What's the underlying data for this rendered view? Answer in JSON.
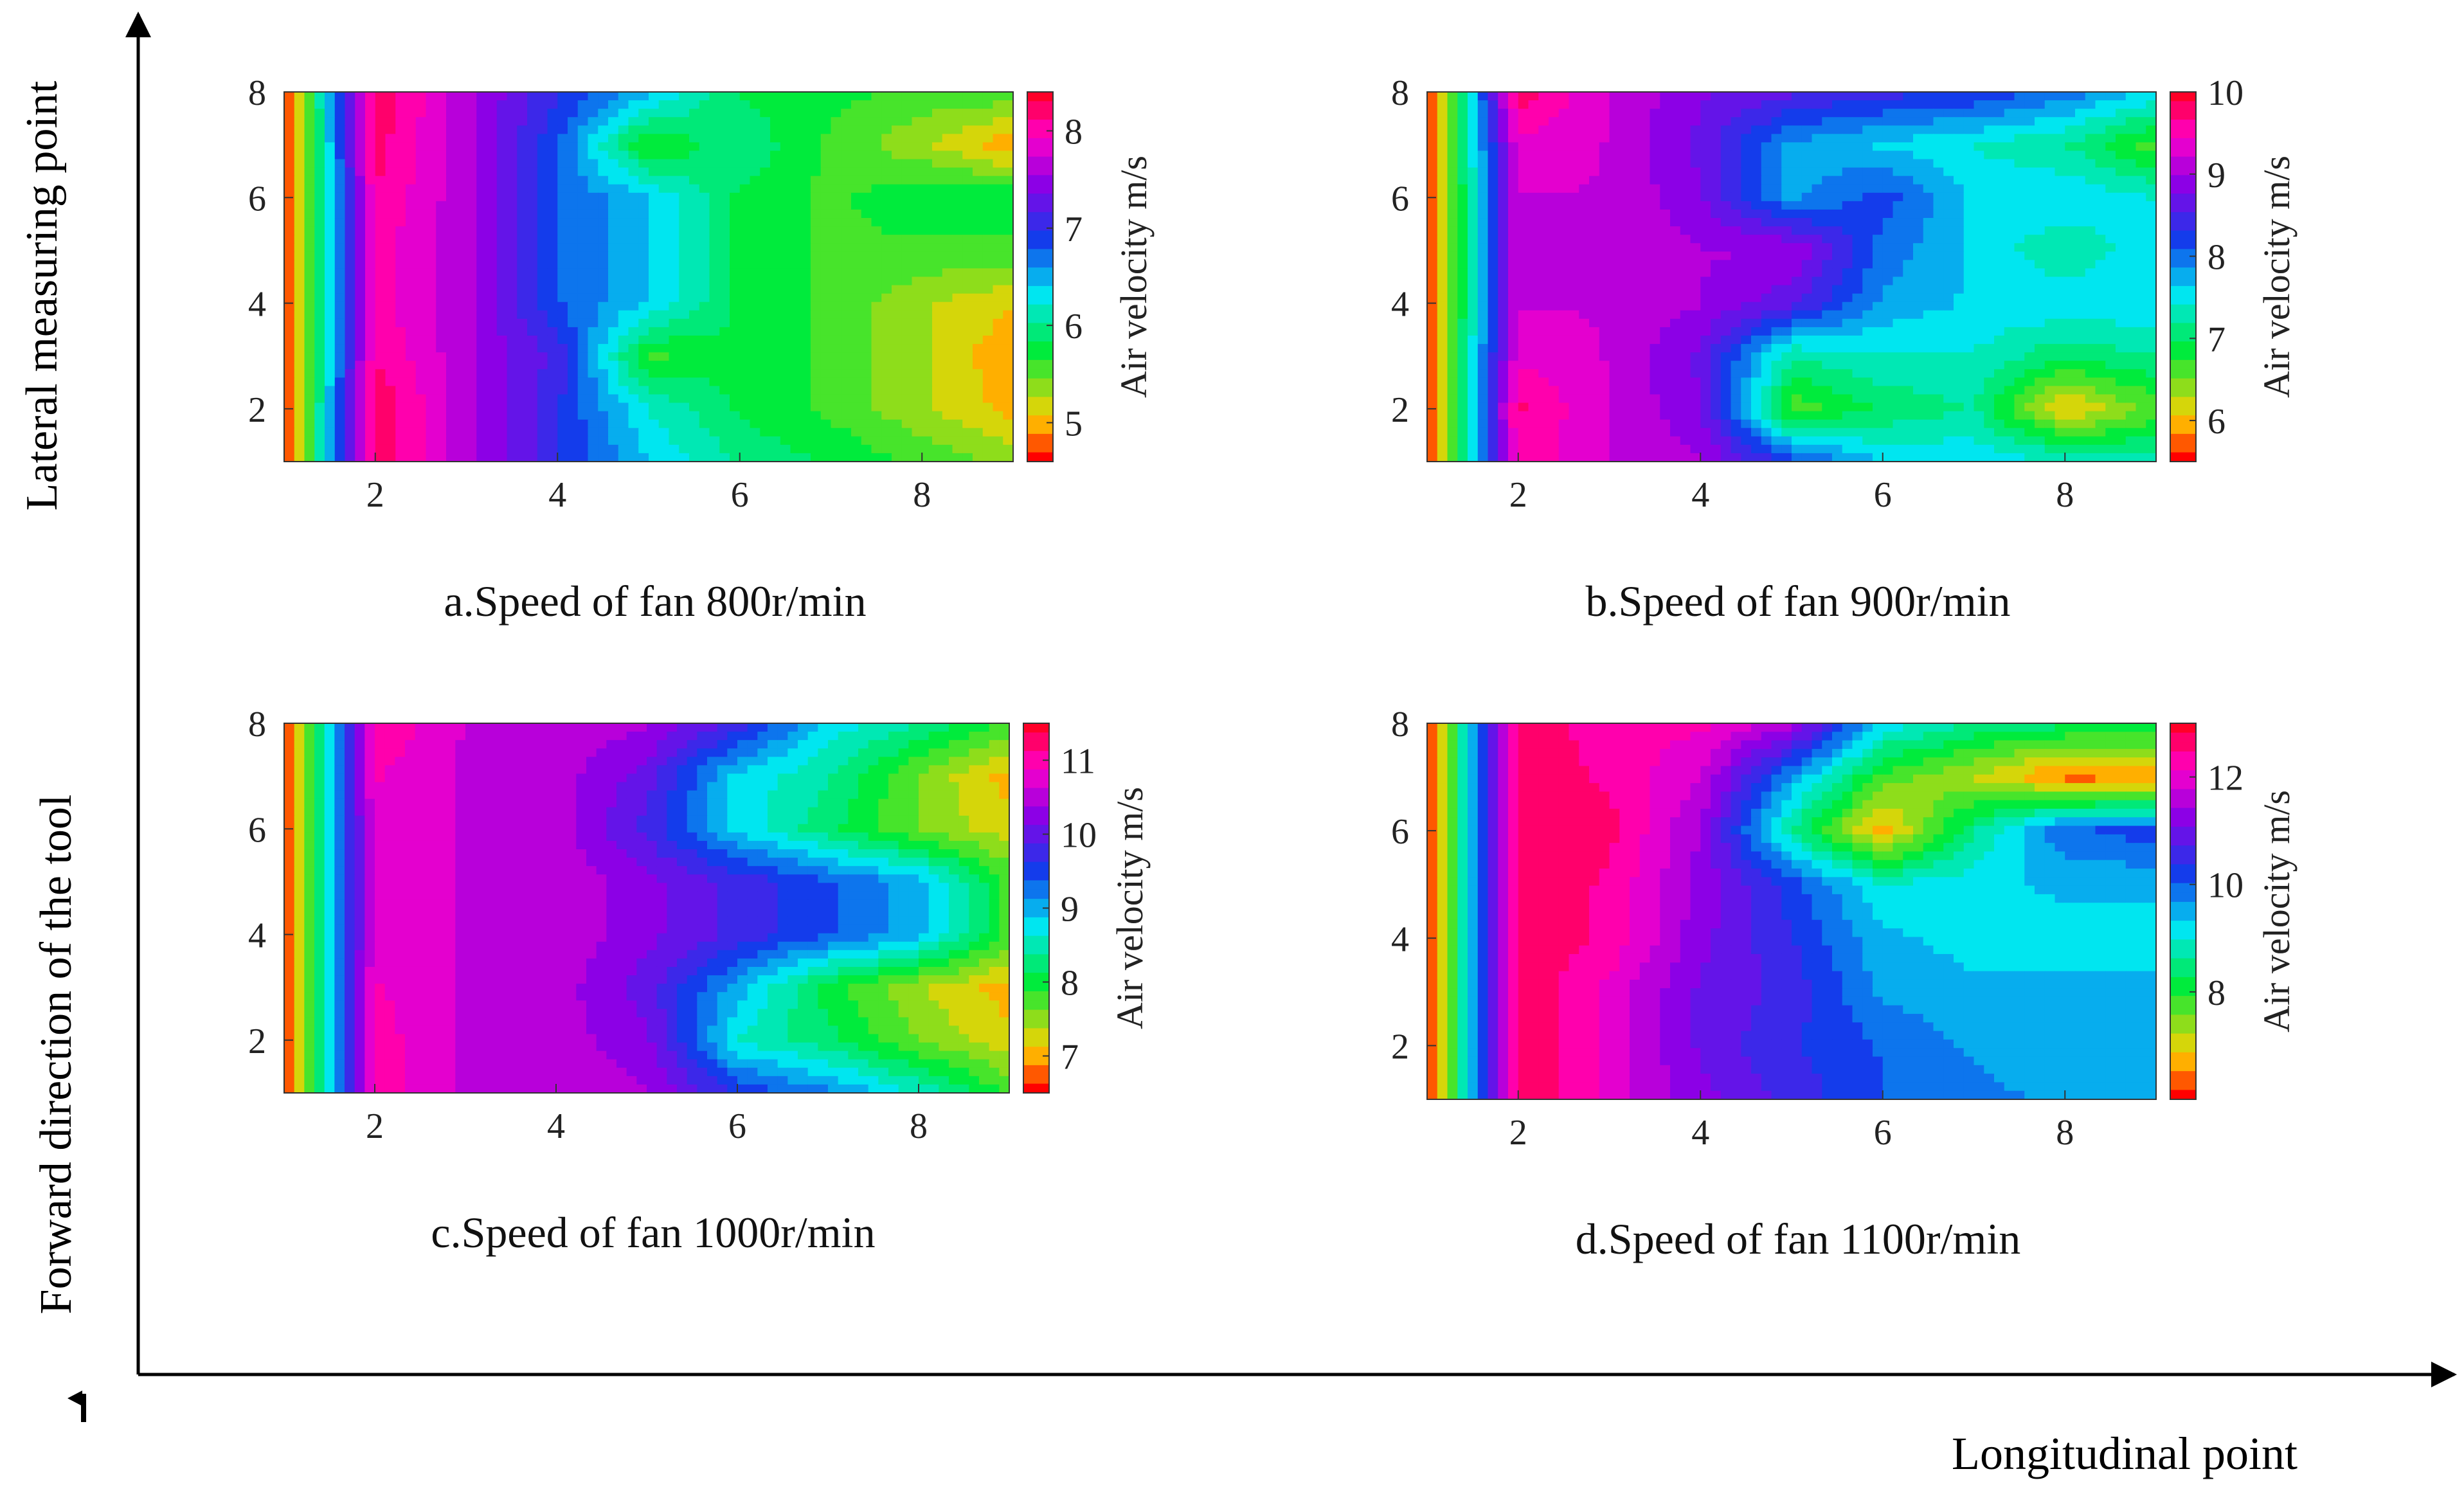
{
  "figure": {
    "y_axis_label_upper": "Lateral measuring point",
    "y_axis_label_lower": "Forward direction of the tool",
    "x_axis_label": "Longitudinal point"
  },
  "chart_data": [
    {
      "type": "heatmap",
      "title": "a.Speed of fan 800r/min",
      "xlabel": "",
      "ylabel": "",
      "colorbar_label": "Air velocity m/s",
      "xlim": [
        1,
        9
      ],
      "ylim": [
        1,
        8
      ],
      "x_ticks": [
        2,
        4,
        6,
        8
      ],
      "y_ticks": [
        2,
        4,
        6,
        8
      ],
      "colorbar_range": [
        4.6,
        8.4
      ],
      "colorbar_ticks": [
        5,
        6,
        7,
        8
      ],
      "x": [
        1,
        2,
        3,
        4,
        5,
        6,
        7,
        8,
        9
      ],
      "y": [
        1,
        2,
        3,
        4,
        5,
        6,
        7,
        8
      ],
      "z": [
        [
          4.6,
          8.3,
          7.6,
          7.0,
          6.4,
          6.0,
          5.8,
          5.6,
          5.4
        ],
        [
          4.6,
          8.3,
          7.6,
          7.0,
          6.2,
          5.8,
          5.6,
          5.3,
          5.0
        ],
        [
          4.6,
          8.1,
          7.6,
          7.1,
          5.6,
          5.8,
          5.6,
          5.3,
          4.9
        ],
        [
          4.6,
          8.0,
          7.6,
          6.8,
          6.4,
          5.8,
          5.6,
          5.3,
          5.1
        ],
        [
          4.6,
          8.0,
          7.6,
          6.8,
          6.4,
          5.8,
          5.6,
          5.6,
          5.6
        ],
        [
          4.6,
          8.1,
          7.6,
          6.8,
          6.4,
          5.8,
          5.6,
          5.8,
          5.8
        ],
        [
          4.6,
          8.2,
          7.6,
          6.8,
          5.6,
          6.0,
          5.6,
          5.3,
          4.9
        ],
        [
          4.6,
          8.3,
          7.6,
          7.0,
          6.5,
          5.8,
          5.7,
          5.6,
          5.6
        ]
      ]
    },
    {
      "type": "heatmap",
      "title": "b.Speed of fan 900r/min",
      "xlabel": "",
      "ylabel": "",
      "colorbar_label": "Air velocity m/s",
      "xlim": [
        1,
        9
      ],
      "ylim": [
        1,
        8
      ],
      "x_ticks": [
        2,
        4,
        6,
        8
      ],
      "y_ticks": [
        2,
        4,
        6,
        8
      ],
      "colorbar_range": [
        5.5,
        10
      ],
      "colorbar_ticks": [
        6,
        7,
        8,
        9,
        10
      ],
      "x": [
        1,
        2,
        3,
        4,
        5,
        6,
        7,
        8,
        9
      ],
      "y": [
        1,
        2,
        3,
        4,
        5,
        6,
        7,
        8
      ],
      "z": [
        [
          5.5,
          9.6,
          9.2,
          9.0,
          8.2,
          7.6,
          7.6,
          7.4,
          7.3
        ],
        [
          5.5,
          9.7,
          9.2,
          8.8,
          6.6,
          7.0,
          7.2,
          6.0,
          6.6
        ],
        [
          5.5,
          9.4,
          9.2,
          8.7,
          7.2,
          7.4,
          7.4,
          7.0,
          7.2
        ],
        [
          5.5,
          9.2,
          9.2,
          9.0,
          8.6,
          7.8,
          7.6,
          7.6,
          7.6
        ],
        [
          5.5,
          9.2,
          9.2,
          9.0,
          9.0,
          8.0,
          7.6,
          7.2,
          7.6
        ],
        [
          5.5,
          9.2,
          9.2,
          8.8,
          7.8,
          8.2,
          7.6,
          7.6,
          7.4
        ],
        [
          5.5,
          9.4,
          9.2,
          8.7,
          7.8,
          7.6,
          7.4,
          7.2,
          6.6
        ],
        [
          5.5,
          9.8,
          9.2,
          8.8,
          8.6,
          8.4,
          8.3,
          8.0,
          7.6
        ]
      ]
    },
    {
      "type": "heatmap",
      "title": "c.Speed of fan 1000r/min",
      "xlabel": "",
      "ylabel": "",
      "colorbar_label": "Air velocity m/s",
      "xlim": [
        1,
        9
      ],
      "ylim": [
        1,
        8
      ],
      "x_ticks": [
        2,
        4,
        6,
        8
      ],
      "y_ticks": [
        2,
        4,
        6,
        8
      ],
      "colorbar_range": [
        6.5,
        11.5
      ],
      "colorbar_ticks": [
        7,
        8,
        9,
        10,
        11
      ],
      "x": [
        1,
        2,
        3,
        4,
        5,
        6,
        7,
        8,
        9
      ],
      "y": [
        1,
        2,
        3,
        4,
        5,
        6,
        7,
        8
      ],
      "z": [
        [
          6.6,
          11.0,
          10.6,
          10.6,
          10.4,
          9.6,
          9.2,
          8.6,
          7.8
        ],
        [
          6.6,
          11.0,
          10.6,
          10.5,
          10.2,
          8.6,
          8.2,
          7.6,
          7.2
        ],
        [
          6.6,
          10.9,
          10.6,
          10.5,
          10.0,
          9.0,
          8.0,
          7.4,
          7.0
        ],
        [
          6.6,
          10.8,
          10.6,
          10.6,
          10.2,
          9.8,
          9.4,
          9.0,
          7.8
        ],
        [
          6.6,
          10.8,
          10.6,
          10.6,
          10.2,
          9.8,
          9.4,
          9.0,
          7.8
        ],
        [
          6.6,
          10.8,
          10.6,
          10.5,
          9.8,
          8.8,
          8.2,
          7.6,
          7.2
        ],
        [
          6.6,
          10.9,
          10.6,
          10.5,
          10.0,
          8.8,
          8.4,
          7.6,
          7.0
        ],
        [
          6.6,
          11.1,
          10.6,
          10.6,
          10.4,
          9.8,
          8.8,
          8.4,
          7.8
        ]
      ]
    },
    {
      "type": "heatmap",
      "title": "d.Speed of fan 1100r/min",
      "xlabel": "",
      "ylabel": "",
      "colorbar_label": "Air velocity m/s",
      "xlim": [
        1,
        9
      ],
      "ylim": [
        1,
        8
      ],
      "x_ticks": [
        2,
        4,
        6,
        8
      ],
      "y_ticks": [
        2,
        4,
        6,
        8
      ],
      "colorbar_range": [
        6,
        13
      ],
      "colorbar_ticks": [
        8,
        10,
        12
      ],
      "x": [
        1,
        2,
        3,
        4,
        5,
        6,
        7,
        8,
        9
      ],
      "y": [
        1,
        2,
        3,
        4,
        5,
        6,
        7,
        8
      ],
      "z": [
        [
          6.0,
          12.8,
          12.0,
          11.2,
          10.6,
          10.0,
          9.8,
          9.6,
          9.6
        ],
        [
          6.0,
          12.8,
          12.0,
          11.0,
          10.4,
          10.0,
          9.6,
          9.4,
          9.4
        ],
        [
          6.0,
          12.8,
          12.0,
          11.0,
          10.6,
          9.6,
          9.4,
          9.4,
          9.4
        ],
        [
          6.0,
          12.8,
          12.4,
          11.2,
          10.4,
          9.4,
          9.2,
          9.2,
          9.2
        ],
        [
          6.0,
          12.8,
          12.4,
          11.3,
          10.2,
          9.0,
          9.2,
          9.4,
          9.4
        ],
        [
          6.0,
          12.8,
          12.6,
          11.4,
          8.6,
          6.6,
          8.6,
          10.0,
          10.2
        ],
        [
          6.0,
          12.8,
          12.4,
          11.8,
          9.6,
          7.8,
          7.2,
          6.4,
          6.4
        ],
        [
          6.0,
          12.8,
          12.2,
          12.2,
          11.6,
          9.2,
          8.6,
          8.4,
          8.4
        ]
      ]
    }
  ]
}
